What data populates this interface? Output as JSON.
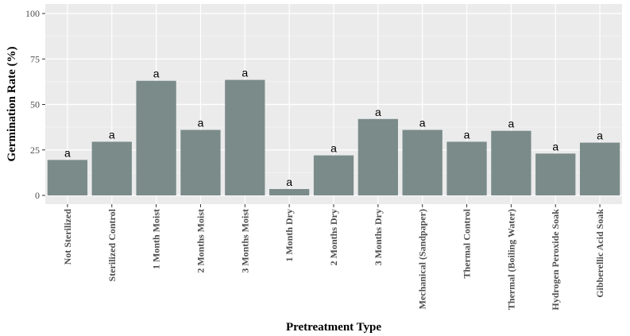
{
  "chart_data": {
    "type": "bar",
    "title": "",
    "xlabel": "Pretreatment Type",
    "ylabel": "Germination Rate (%)",
    "ylim": [
      0,
      100
    ],
    "yticks": [
      0,
      25,
      50,
      75,
      100
    ],
    "grid": true,
    "categories": [
      "Not Sterilized",
      "Sterilized Control",
      "1 Month Moist",
      "2 Months Moist",
      "3 Months Moist",
      "1 Month Dry",
      "2 Months Dry",
      "3 Months Dry",
      "Mechanical (Sandpaper)",
      "Thermal Control",
      "Thermal (Boiling Water)",
      "Hydrogen Peroxide Soak",
      "Gibberellic Acid Soak"
    ],
    "values": [
      19.5,
      29.5,
      63,
      36,
      63.5,
      3.5,
      22,
      42,
      36,
      29.5,
      35.5,
      23,
      29
    ],
    "bar_labels": [
      "a",
      "a",
      "a",
      "a",
      "a",
      "a",
      "a",
      "a",
      "a",
      "a",
      "a",
      "a",
      "a"
    ],
    "colors": {
      "bar": "#7a8b8a",
      "panel": "#ebebeb",
      "grid_major": "#ffffff",
      "grid_minor": "#f5f5f5"
    }
  }
}
